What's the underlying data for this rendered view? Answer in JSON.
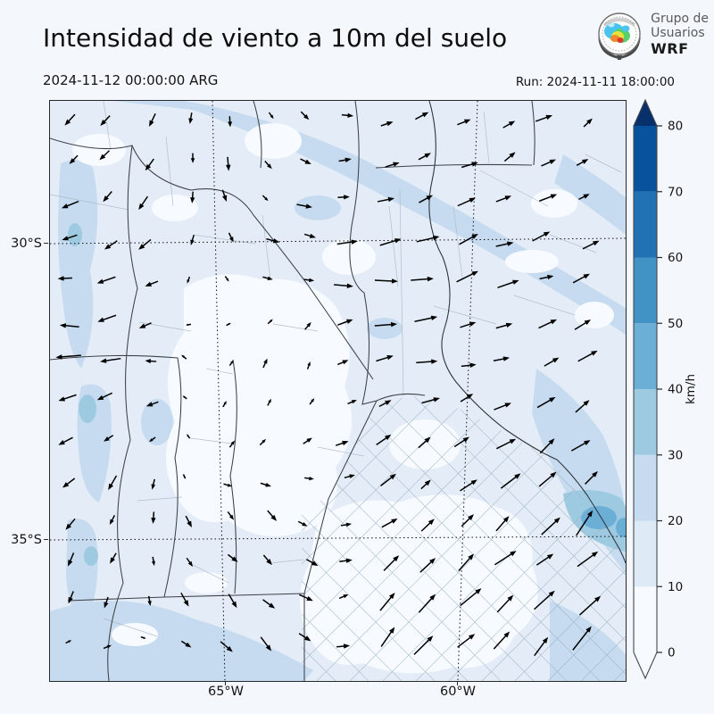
{
  "header": {
    "title": "Intensidad de viento a 10m del suelo",
    "valid_time": "2024-11-12 00:00:00 ARG",
    "run_label": "Run: 2024-11-11 18:00:00"
  },
  "logo": {
    "line1": "Grupo de",
    "line2": "Usuarios",
    "line3": "WRF"
  },
  "axes": {
    "lat_ticks": [
      {
        "label": "30°S"
      },
      {
        "label": "35°S"
      }
    ],
    "lon_ticks": [
      {
        "label": "65°W"
      },
      {
        "label": "60°W"
      }
    ]
  },
  "colorbar": {
    "units": "km/h",
    "levels": [
      0,
      10,
      20,
      30,
      40,
      50,
      60,
      70,
      80
    ],
    "tick_labels": [
      "0",
      "10",
      "20",
      "30",
      "40",
      "50",
      "60",
      "70",
      "80"
    ],
    "colors": [
      "#f7fbff",
      "#deebf7",
      "#c6dbef",
      "#9ecae1",
      "#6baed6",
      "#4292c6",
      "#2171b5",
      "#08519c"
    ],
    "over_color": "#08306b",
    "under_color": "#f7fbff"
  },
  "map_palette": {
    "background": "#e4edf7",
    "calm": "#f7fbff",
    "light": "#c6dbef",
    "moderate": "#9ecae1",
    "strong": "#6baed6",
    "arrow": "#000000"
  },
  "wind_field": {
    "cols": 8,
    "rows": 8,
    "angles_deg": [
      [
        215,
        245,
        280,
        310,
        25,
        30,
        30,
        38
      ],
      [
        205,
        235,
        275,
        340,
        15,
        25,
        30,
        35
      ],
      [
        190,
        205,
        290,
        355,
        5,
        15,
        22,
        28
      ],
      [
        182,
        190,
        60,
        85,
        10,
        12,
        18,
        24
      ],
      [
        195,
        220,
        70,
        45,
        28,
        32,
        36,
        42
      ],
      [
        225,
        245,
        315,
        325,
        38,
        42,
        44,
        46
      ],
      [
        238,
        260,
        305,
        318,
        48,
        46,
        46,
        50
      ],
      [
        42,
        48,
        320,
        305,
        58,
        52,
        48,
        46
      ]
    ],
    "lengths": [
      [
        15,
        13,
        12,
        11,
        13,
        16,
        17,
        15
      ],
      [
        17,
        15,
        13,
        12,
        15,
        19,
        18,
        15
      ],
      [
        20,
        17,
        11,
        16,
        21,
        23,
        19,
        17
      ],
      [
        23,
        21,
        9,
        9,
        19,
        21,
        19,
        21
      ],
      [
        19,
        15,
        9,
        11,
        15,
        19,
        21,
        23
      ],
      [
        15,
        13,
        13,
        15,
        17,
        21,
        25,
        27
      ],
      [
        17,
        15,
        15,
        17,
        19,
        23,
        27,
        29
      ],
      [
        26,
        24,
        19,
        19,
        22,
        25,
        29,
        31
      ]
    ]
  }
}
